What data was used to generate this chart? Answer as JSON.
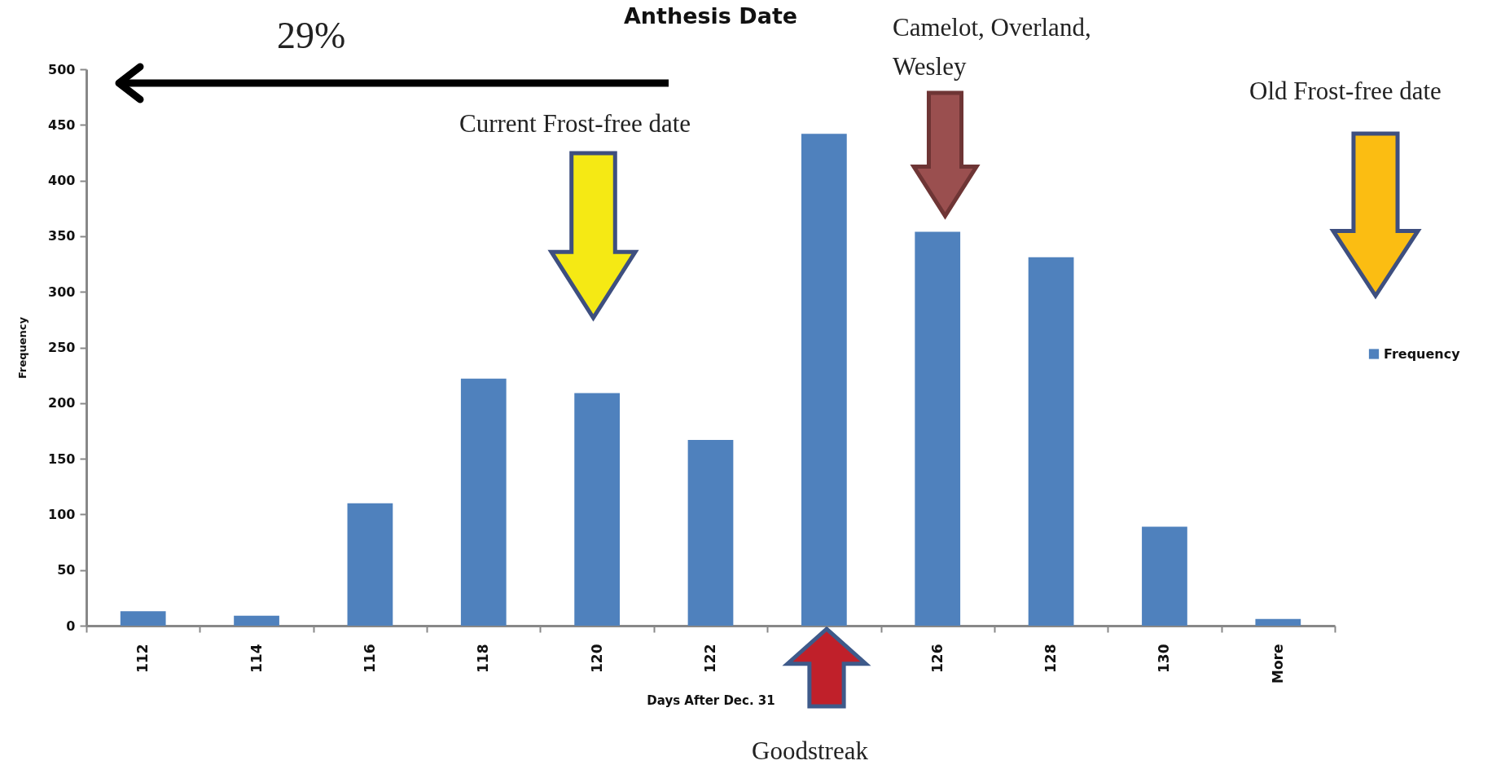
{
  "chart_data": {
    "type": "bar",
    "title": "Anthesis Date",
    "xlabel": "Days After Dec. 31",
    "ylabel": "Frequency",
    "categories": [
      "112",
      "114",
      "116",
      "118",
      "120",
      "122",
      null,
      "126",
      "128",
      "130",
      "More"
    ],
    "series": [
      {
        "name": "Frequency",
        "color": "#4f81bd",
        "values": [
          13,
          9,
          110,
          222,
          209,
          167,
          442,
          354,
          331,
          89,
          6
        ]
      }
    ],
    "ylim": [
      0,
      500
    ],
    "yticks": [
      0,
      50,
      100,
      150,
      200,
      250,
      300,
      350,
      400,
      450,
      500
    ],
    "grid": false,
    "legend": "right",
    "annotations": [
      "29%",
      "Current Frost-free date",
      "Camelot, Overland, Wesley",
      "Old Frost-free date",
      "Goodstreak"
    ]
  }
}
